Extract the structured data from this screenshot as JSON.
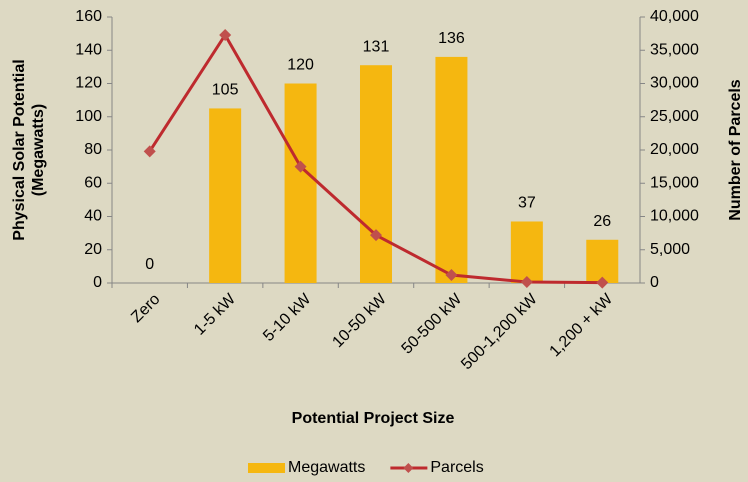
{
  "chart_data": {
    "type": "bar-line",
    "categories": [
      "Zero",
      "1-5 kW",
      "5-10 kW",
      "10-50 kW",
      "50-500 kW",
      "500-1,200 kW",
      "1,200 + kW"
    ],
    "series": [
      {
        "name": "Megawatts",
        "type": "bar",
        "color": "#f5b710",
        "values": [
          0,
          105,
          120,
          131,
          136,
          37,
          26
        ]
      },
      {
        "name": "Parcels",
        "type": "line",
        "axis": "y2",
        "color": "#be2a2e",
        "marker_color": "#c0504d",
        "values": [
          19800,
          37300,
          17500,
          7200,
          1200,
          150,
          50
        ]
      }
    ],
    "ylabel": [
      "Physical Solar Potential",
      "(Megawatts)"
    ],
    "y2label": "Number of Parcels",
    "xlabel": "Potential Project Size",
    "ylim": [
      0,
      160
    ],
    "yticks": [
      0,
      20,
      40,
      60,
      80,
      100,
      120,
      140,
      160
    ],
    "y2lim": [
      0,
      40000
    ],
    "y2ticks": [
      0,
      {
        "value": 5000,
        "label": "5,000"
      },
      {
        "value": 10000,
        "label": "10,000"
      },
      {
        "value": 15000,
        "label": "15,000"
      },
      {
        "value": 20000,
        "label": "20,000"
      },
      {
        "value": 25000,
        "label": "25,000"
      },
      {
        "value": 30000,
        "label": "30,000"
      },
      {
        "value": 35000,
        "label": "35,000"
      },
      {
        "value": 40000,
        "label": "40,000"
      }
    ],
    "legend": "bottom",
    "grid": false,
    "background": "#ddd9c3"
  }
}
